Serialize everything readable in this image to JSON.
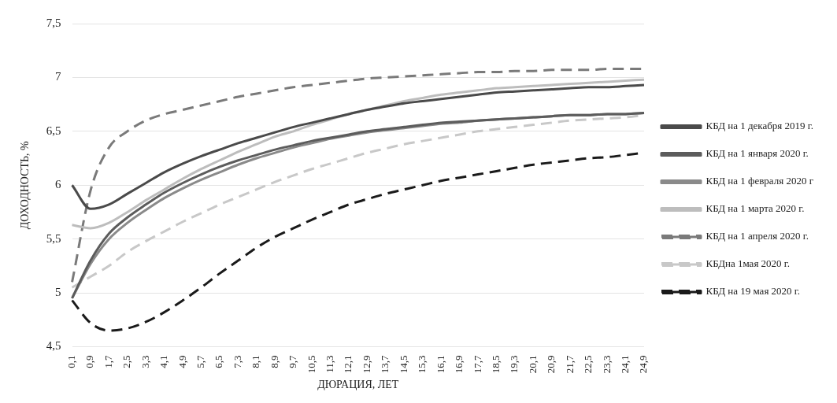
{
  "chart_data": {
    "type": "line",
    "xlabel": "ДЮРАЦИЯ, ЛЕТ",
    "ylabel": "ДОХОДНОСТЬ, %",
    "categories": [
      "0,1",
      "0,9",
      "1,7",
      "2,5",
      "3,3",
      "4,1",
      "4,9",
      "5,7",
      "6,5",
      "7,3",
      "8,1",
      "8,9",
      "9,7",
      "10,5",
      "11,3",
      "12,1",
      "12,9",
      "13,7",
      "14,5",
      "15,3",
      "16,1",
      "16,9",
      "17,7",
      "18,5",
      "19,3",
      "20,1",
      "20,9",
      "21,7",
      "22,5",
      "23,3",
      "24,1",
      "24,9"
    ],
    "ylim": [
      4.5,
      7.5
    ],
    "yticks": [
      {
        "value": 4.5,
        "label": "4,5"
      },
      {
        "value": 5,
        "label": "5"
      },
      {
        "value": 5.5,
        "label": "5,5"
      },
      {
        "value": 6,
        "label": "6"
      },
      {
        "value": 6.5,
        "label": "6,5"
      },
      {
        "value": 7,
        "label": "7"
      },
      {
        "value": 7.5,
        "label": "7,5"
      }
    ],
    "grid": "y",
    "legend": "right",
    "marker": "none",
    "series": [
      {
        "name": "КБД на 1 декабря 2019 г.",
        "color": "#4a4a4a",
        "line_style": "solid",
        "values": [
          6.0,
          5.78,
          5.82,
          5.92,
          6.02,
          6.12,
          6.2,
          6.27,
          6.33,
          6.39,
          6.44,
          6.49,
          6.54,
          6.58,
          6.62,
          6.66,
          6.7,
          6.73,
          6.76,
          6.78,
          6.8,
          6.82,
          6.84,
          6.86,
          6.87,
          6.88,
          6.89,
          6.9,
          6.91,
          6.91,
          6.92,
          6.93
        ]
      },
      {
        "name": "КБД на 1 января 2020 г.",
        "color": "#5c5c5c",
        "line_style": "solid",
        "values": [
          4.95,
          5.3,
          5.55,
          5.7,
          5.82,
          5.93,
          6.02,
          6.1,
          6.17,
          6.23,
          6.28,
          6.33,
          6.37,
          6.41,
          6.44,
          6.47,
          6.5,
          6.52,
          6.54,
          6.56,
          6.58,
          6.59,
          6.6,
          6.61,
          6.62,
          6.63,
          6.64,
          6.65,
          6.65,
          6.66,
          6.66,
          6.67
        ]
      },
      {
        "name": "КБД на 1 февраля 2020 г",
        "color": "#8a8a8a",
        "line_style": "solid",
        "values": [
          4.95,
          5.27,
          5.5,
          5.65,
          5.77,
          5.88,
          5.97,
          6.05,
          6.12,
          6.19,
          6.25,
          6.3,
          6.35,
          6.39,
          6.43,
          6.46,
          6.49,
          6.51,
          6.53,
          6.55,
          6.57,
          6.58,
          6.6,
          6.61,
          6.62,
          6.63,
          6.64,
          6.65,
          6.65,
          6.66,
          6.66,
          6.67
        ]
      },
      {
        "name": "КБД на 1 марта 2020 г.",
        "color": "#bdbdbd",
        "line_style": "solid",
        "values": [
          5.63,
          5.6,
          5.65,
          5.75,
          5.86,
          5.96,
          6.06,
          6.15,
          6.23,
          6.31,
          6.38,
          6.45,
          6.5,
          6.56,
          6.61,
          6.66,
          6.7,
          6.74,
          6.78,
          6.81,
          6.84,
          6.86,
          6.88,
          6.9,
          6.91,
          6.92,
          6.93,
          6.94,
          6.95,
          6.96,
          6.97,
          6.98
        ]
      },
      {
        "name": "КБД на 1 апреля 2020 г.",
        "color": "#7a7a7a",
        "line_style": "dashed",
        "values": [
          5.1,
          5.95,
          6.35,
          6.5,
          6.6,
          6.66,
          6.7,
          6.74,
          6.78,
          6.82,
          6.85,
          6.88,
          6.91,
          6.93,
          6.95,
          6.97,
          6.99,
          7.0,
          7.01,
          7.02,
          7.03,
          7.04,
          7.05,
          7.05,
          7.06,
          7.06,
          7.07,
          7.07,
          7.07,
          7.08,
          7.08,
          7.08
        ]
      },
      {
        "name": "КБДна 1мая 2020 г.",
        "color": "#c8c8c8",
        "line_style": "dashed",
        "values": [
          5.05,
          5.15,
          5.25,
          5.38,
          5.48,
          5.57,
          5.66,
          5.74,
          5.82,
          5.89,
          5.96,
          6.03,
          6.09,
          6.15,
          6.2,
          6.25,
          6.3,
          6.34,
          6.38,
          6.41,
          6.44,
          6.47,
          6.5,
          6.52,
          6.54,
          6.56,
          6.58,
          6.6,
          6.61,
          6.62,
          6.63,
          6.65
        ]
      },
      {
        "name": "КБД на 19 мая 2020 г.",
        "color": "#1a1a1a",
        "line_style": "dashed",
        "values": [
          4.93,
          4.72,
          4.65,
          4.67,
          4.73,
          4.82,
          4.93,
          5.05,
          5.18,
          5.3,
          5.42,
          5.52,
          5.6,
          5.68,
          5.75,
          5.82,
          5.87,
          5.92,
          5.96,
          6.0,
          6.04,
          6.07,
          6.1,
          6.13,
          6.16,
          6.19,
          6.21,
          6.23,
          6.25,
          6.26,
          6.28,
          6.3
        ]
      }
    ]
  }
}
